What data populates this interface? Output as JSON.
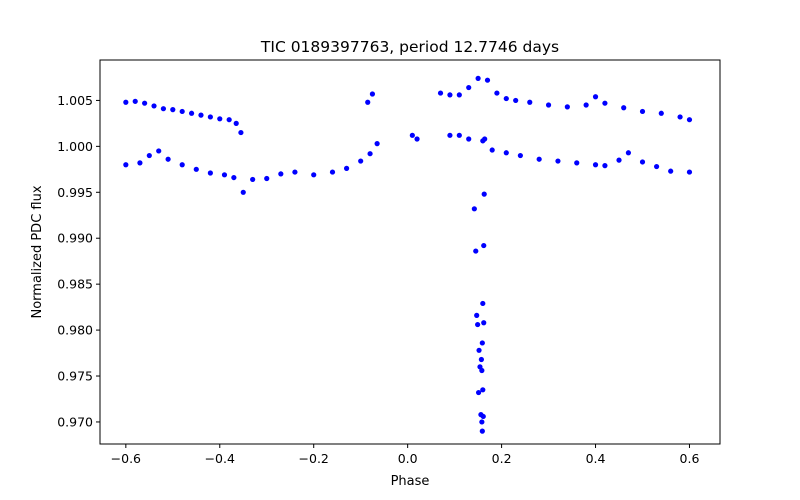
{
  "chart_data": {
    "type": "scatter",
    "title": "TIC 0189397763, period 12.7746 days",
    "xlabel": "Phase",
    "ylabel": "Normalized PDC flux",
    "xlim": [
      -0.655,
      0.665
    ],
    "ylim": [
      0.9676,
      1.0094
    ],
    "xticks": [
      -0.6,
      -0.4,
      -0.2,
      0.0,
      0.2,
      0.4,
      0.6
    ],
    "xtick_labels": [
      "−0.6",
      "−0.4",
      "−0.2",
      "0.0",
      "0.2",
      "0.4",
      "0.6"
    ],
    "yticks": [
      0.97,
      0.975,
      0.98,
      0.985,
      0.99,
      0.995,
      1.0,
      1.005
    ],
    "ytick_labels": [
      "0.970",
      "0.975",
      "0.980",
      "0.985",
      "0.990",
      "0.995",
      "1.000",
      "1.005"
    ],
    "grid": false,
    "marker_color": "#0000ff",
    "series": [
      {
        "values_note": "upper band",
        "points": [
          [
            -0.6,
            1.0048
          ],
          [
            -0.58,
            1.0049
          ],
          [
            -0.56,
            1.0047
          ],
          [
            -0.54,
            1.0044
          ],
          [
            -0.52,
            1.0041
          ],
          [
            -0.5,
            1.004
          ],
          [
            -0.48,
            1.0038
          ],
          [
            -0.46,
            1.0036
          ],
          [
            -0.44,
            1.0034
          ],
          [
            -0.42,
            1.0032
          ],
          [
            -0.4,
            1.003
          ],
          [
            -0.38,
            1.0029
          ],
          [
            -0.365,
            1.0025
          ],
          [
            -0.355,
            1.0015
          ],
          [
            -0.085,
            1.0048
          ],
          [
            -0.075,
            1.0057
          ],
          [
            0.07,
            1.0058
          ],
          [
            0.09,
            1.0056
          ],
          [
            0.11,
            1.0056
          ],
          [
            0.13,
            1.0064
          ],
          [
            0.15,
            1.0074
          ],
          [
            0.17,
            1.0072
          ],
          [
            0.19,
            1.0058
          ],
          [
            0.21,
            1.0052
          ],
          [
            0.23,
            1.005
          ],
          [
            0.26,
            1.0048
          ],
          [
            0.3,
            1.0045
          ],
          [
            0.34,
            1.0043
          ],
          [
            0.38,
            1.0045
          ],
          [
            0.4,
            1.0054
          ],
          [
            0.42,
            1.0047
          ],
          [
            0.46,
            1.0042
          ],
          [
            0.5,
            1.0038
          ],
          [
            0.54,
            1.0036
          ],
          [
            0.58,
            1.0032
          ],
          [
            0.6,
            1.0029
          ]
        ]
      },
      {
        "values_note": "lower band",
        "points": [
          [
            -0.6,
            0.998
          ],
          [
            -0.57,
            0.9982
          ],
          [
            -0.55,
            0.999
          ],
          [
            -0.53,
            0.9995
          ],
          [
            -0.51,
            0.9986
          ],
          [
            -0.48,
            0.998
          ],
          [
            -0.45,
            0.9975
          ],
          [
            -0.42,
            0.9971
          ],
          [
            -0.39,
            0.9969
          ],
          [
            -0.37,
            0.9966
          ],
          [
            -0.35,
            0.995
          ],
          [
            -0.33,
            0.9964
          ],
          [
            -0.3,
            0.9965
          ],
          [
            -0.27,
            0.997
          ],
          [
            -0.24,
            0.9972
          ],
          [
            -0.2,
            0.9969
          ],
          [
            -0.16,
            0.9972
          ],
          [
            -0.13,
            0.9976
          ],
          [
            -0.1,
            0.9984
          ],
          [
            -0.08,
            0.9992
          ],
          [
            -0.065,
            1.0003
          ],
          [
            0.01,
            1.0012
          ],
          [
            0.02,
            1.0008
          ],
          [
            0.09,
            1.0012
          ],
          [
            0.11,
            1.0012
          ],
          [
            0.13,
            1.0008
          ],
          [
            0.16,
            1.0006
          ],
          [
            0.18,
            0.9996
          ],
          [
            0.21,
            0.9993
          ],
          [
            0.24,
            0.999
          ],
          [
            0.28,
            0.9986
          ],
          [
            0.32,
            0.9984
          ],
          [
            0.36,
            0.9982
          ],
          [
            0.4,
            0.998
          ],
          [
            0.42,
            0.9979
          ],
          [
            0.45,
            0.9985
          ],
          [
            0.47,
            0.9993
          ],
          [
            0.5,
            0.9983
          ],
          [
            0.53,
            0.9978
          ],
          [
            0.56,
            0.9973
          ],
          [
            0.6,
            0.9972
          ]
        ]
      },
      {
        "values_note": "transit dip",
        "points": [
          [
            0.142,
            0.9932
          ],
          [
            0.145,
            0.9886
          ],
          [
            0.147,
            0.9816
          ],
          [
            0.149,
            0.9806
          ],
          [
            0.152,
            0.9778
          ],
          [
            0.154,
            0.976
          ],
          [
            0.151,
            0.9732
          ],
          [
            0.156,
            0.9708
          ],
          [
            0.158,
            0.97
          ],
          [
            0.159,
            0.969
          ],
          [
            0.161,
            0.9706
          ],
          [
            0.16,
            0.9735
          ],
          [
            0.158,
            0.9756
          ],
          [
            0.157,
            0.9768
          ],
          [
            0.159,
            0.9786
          ],
          [
            0.162,
            0.9808
          ],
          [
            0.16,
            0.9829
          ],
          [
            0.162,
            0.9892
          ],
          [
            0.163,
            0.9948
          ],
          [
            0.164,
            1.0008
          ]
        ]
      }
    ]
  }
}
